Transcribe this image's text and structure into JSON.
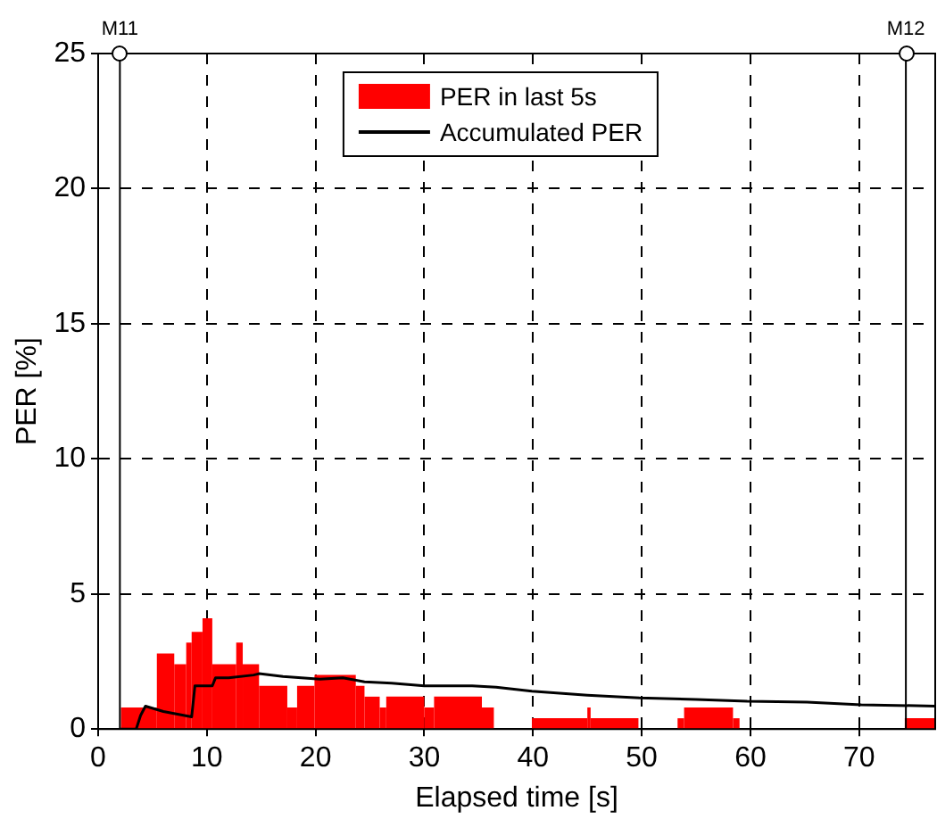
{
  "chart_data": {
    "type": "histogram",
    "xlabel": "Elapsed time [s]",
    "ylabel": "PER [%]",
    "xlim": [
      0,
      77
    ],
    "xticks": [
      0,
      10,
      20,
      30,
      40,
      50,
      60,
      70
    ],
    "ylim": [
      0,
      25
    ],
    "yticks": [
      0,
      5,
      10,
      15,
      20,
      25
    ],
    "grid": true,
    "legend": "top",
    "bins": [
      2.1,
      5.4,
      7.0,
      8.1,
      8.6,
      9.6,
      10.5,
      12.7,
      13.3,
      14.8,
      17.4,
      18.3,
      19.9,
      23.7,
      24.5,
      25.9,
      26.5,
      30,
      30.9,
      35.3,
      36.4,
      39.9,
      45,
      45.3,
      49.7,
      53.3,
      53.9,
      58.4,
      59,
      74.2,
      77
    ],
    "series": [
      {
        "name": "PER in last 5s",
        "color": "#ff0000",
        "values": [
          0.8,
          2.8,
          2.4,
          3.2,
          3.6,
          4.1,
          2.4,
          3.2,
          2.4,
          1.6,
          0.8,
          1.6,
          2.0,
          1.6,
          1.2,
          0.8,
          1.2,
          0.8,
          1.2,
          0.8,
          0,
          0.4,
          0.8,
          0.4,
          0,
          0.4,
          0.8,
          0.4,
          0,
          0.4
        ]
      },
      {
        "name": "Accumulated PER",
        "type": "line",
        "color": "#000000",
        "x": [
          2,
          3.5,
          3.9,
          4.35,
          6,
          8.6,
          8.9,
          10.5,
          10.8,
          12,
          14.3,
          14.8,
          17,
          20.4,
          22.5,
          24.5,
          27,
          30,
          34.4,
          36.6,
          39.9,
          45,
          49.8,
          55,
          59.7,
          65.2,
          70.2,
          77
        ],
        "values": [
          0,
          0,
          0.5,
          0.85,
          0.65,
          0.45,
          1.6,
          1.6,
          1.9,
          1.9,
          2.0,
          2.05,
          1.95,
          1.85,
          1.9,
          1.75,
          1.7,
          1.6,
          1.6,
          1.55,
          1.4,
          1.25,
          1.15,
          1.1,
          1.03,
          1.0,
          0.9,
          0.85
        ]
      }
    ],
    "ref_lines": [
      {
        "axis": "x",
        "value": 2,
        "label": "M11",
        "color": "#000000"
      },
      {
        "axis": "x",
        "value": 74.3,
        "label": "M12",
        "color": "#000000"
      }
    ]
  }
}
